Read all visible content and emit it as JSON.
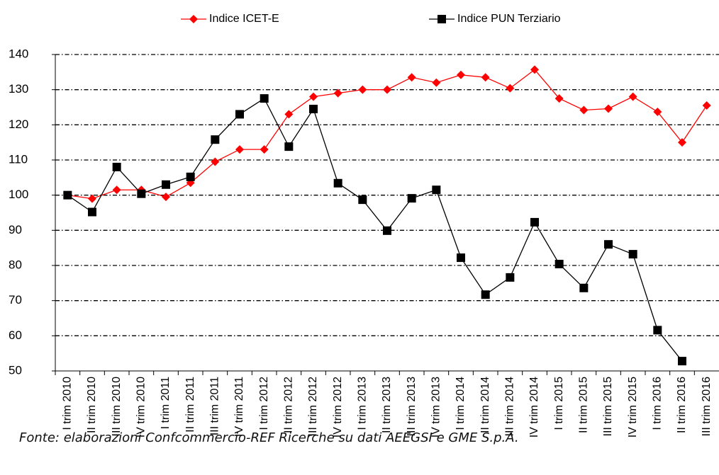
{
  "chart_data": {
    "type": "line",
    "categories": [
      "I trim 2010",
      "II trim 2010",
      "III trim 2010",
      "IV trim 2010",
      "I trim 2011",
      "II trim 2011",
      "III trim 2011",
      "IV trim 2011",
      "I trim 2012",
      "II trim 2012",
      "III trim 2012",
      "IV trim 2012",
      "I trim 2013",
      "II trim 2013",
      "III trim 2013",
      "IV trim 2013",
      "I trim 2014",
      "II trim 2014",
      "III trim 2014",
      "IV trim 2014",
      "I trim 2015",
      "II trim 2015",
      "III trim 2015",
      "IV trim 2015",
      "I trim 2016",
      "II trim 2016",
      "III trim 2016"
    ],
    "series": [
      {
        "name": "Indice ICET-E",
        "color": "#ff0000",
        "marker": "diamond",
        "values": [
          100,
          99,
          101.5,
          101.5,
          99.5,
          103.5,
          109.5,
          113,
          113,
          123,
          128,
          129,
          130,
          130,
          133.5,
          132,
          134.2,
          133.5,
          130.4,
          135.7,
          127.5,
          124.2,
          124.6,
          128,
          123.7,
          115,
          125.5
        ]
      },
      {
        "name": "Indice PUN Terziario",
        "color": "#000000",
        "marker": "square",
        "values": [
          100,
          95.2,
          108,
          100.4,
          103,
          105.2,
          115.8,
          123,
          127.5,
          113.8,
          124.5,
          103.4,
          98.7,
          89.9,
          99.1,
          101.5,
          82.2,
          71.7,
          76.6,
          92.3,
          80.4,
          73.6,
          86,
          83.2,
          61.6,
          52.8,
          null
        ]
      }
    ],
    "ylim": [
      50,
      140
    ],
    "yticks": [
      50,
      60,
      70,
      80,
      90,
      100,
      110,
      120,
      130,
      140
    ],
    "grid": true,
    "legend": "top",
    "source": "Fonte: elaborazioni Confcommercio-REF Ricerche su dati AEEGSI e GME S.p.A."
  }
}
